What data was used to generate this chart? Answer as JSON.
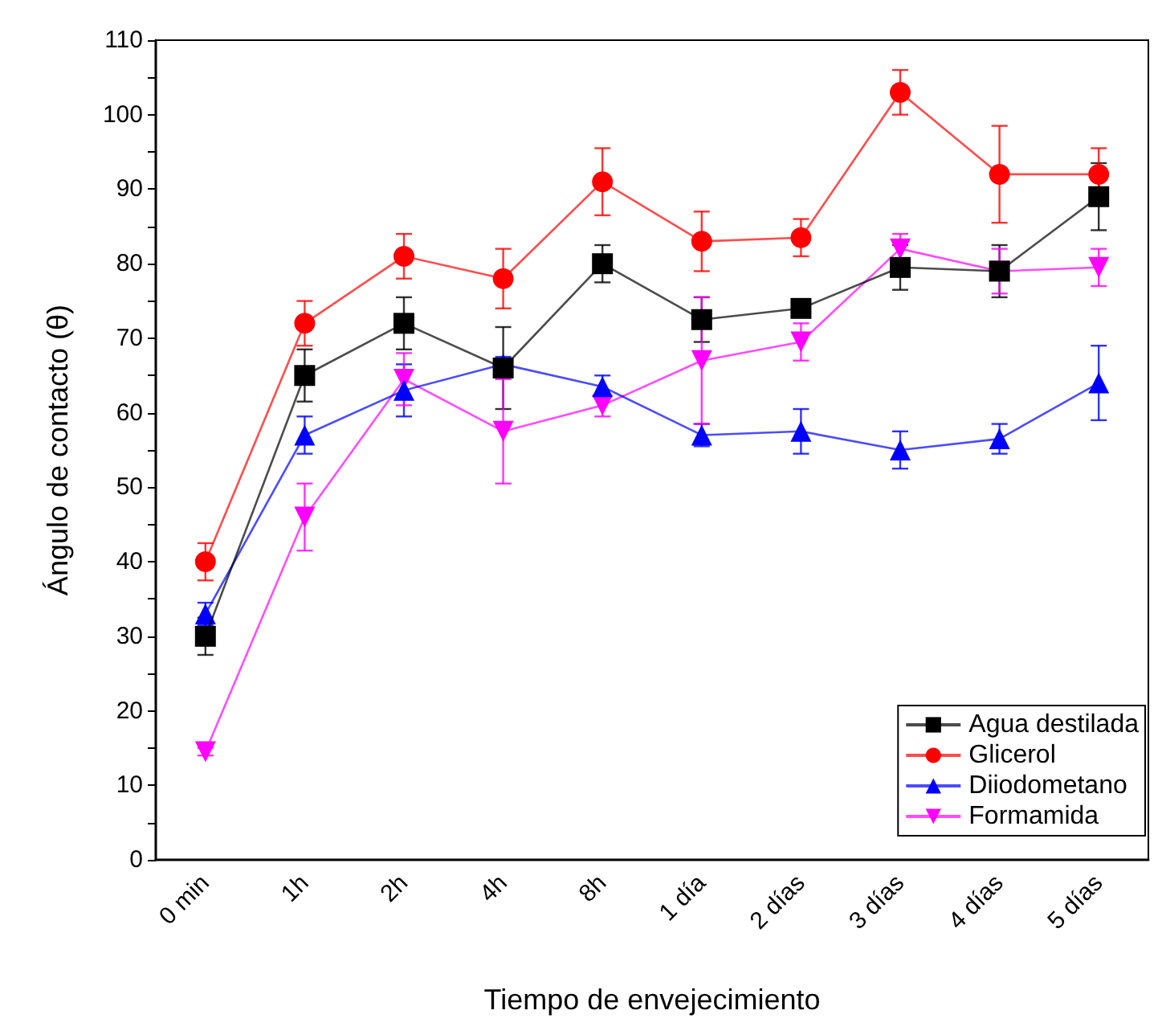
{
  "chart_data": {
    "type": "line",
    "xlabel": "Tiempo de envejecimiento",
    "ylabel": "Ángulo de contacto (θ)",
    "categories": [
      "0 min",
      "1h",
      "2h",
      "4h",
      "8h",
      "1 día",
      "2 días",
      "3 días",
      "4 días",
      "5 días"
    ],
    "ylim": [
      0,
      110
    ],
    "yticks": [
      0,
      {
        "value": 5,
        "label": null
      },
      10,
      {
        "value": 15,
        "label": null
      },
      20,
      {
        "value": 25,
        "label": null
      },
      30,
      {
        "value": 35,
        "label": null
      },
      40,
      {
        "value": 45,
        "label": null
      },
      50,
      {
        "value": 55,
        "label": null
      },
      60,
      {
        "value": 65,
        "label": null
      },
      70,
      {
        "value": 75,
        "label": null
      },
      80,
      {
        "value": 85,
        "label": null
      },
      90,
      {
        "value": 95,
        "label": null
      },
      100,
      {
        "value": 105,
        "label": null
      },
      110
    ],
    "grid": false,
    "legend": "bottom right",
    "line_style": "solid",
    "series": [
      {
        "name": "Agua destilada",
        "color": "#000000",
        "marker": "square",
        "values": [
          30,
          65,
          72,
          66,
          80,
          72.5,
          74,
          79.5,
          79,
          89
        ],
        "errors": [
          2.5,
          3.5,
          3.5,
          5.5,
          2.5,
          3,
          1,
          3,
          3.5,
          4.5
        ]
      },
      {
        "name": "Glicerol",
        "color": "#ff0000",
        "marker": "circle",
        "values": [
          40,
          72,
          81,
          78,
          91,
          83,
          83.5,
          103,
          92,
          92
        ],
        "errors": [
          2.5,
          3,
          3,
          4,
          4.5,
          4,
          2.5,
          3,
          6.5,
          3.5
        ]
      },
      {
        "name": "Diiodometano",
        "color": "#0000ff",
        "marker": "triangle",
        "values": [
          33,
          57,
          63,
          66.5,
          63.5,
          57,
          57.5,
          55,
          56.5,
          64
        ],
        "errors": [
          1.5,
          2.5,
          3.5,
          1,
          1.5,
          1.5,
          3,
          2.5,
          2,
          5
        ]
      },
      {
        "name": "Formamida",
        "color": "#ff00ff",
        "marker": "triangle-down",
        "values": [
          14.5,
          46,
          64.5,
          57.5,
          61,
          67,
          69.5,
          82,
          79,
          79.5
        ],
        "errors": [
          0.5,
          4.5,
          3.5,
          7,
          1.5,
          8.5,
          2.5,
          2,
          3,
          2.5
        ]
      }
    ]
  }
}
